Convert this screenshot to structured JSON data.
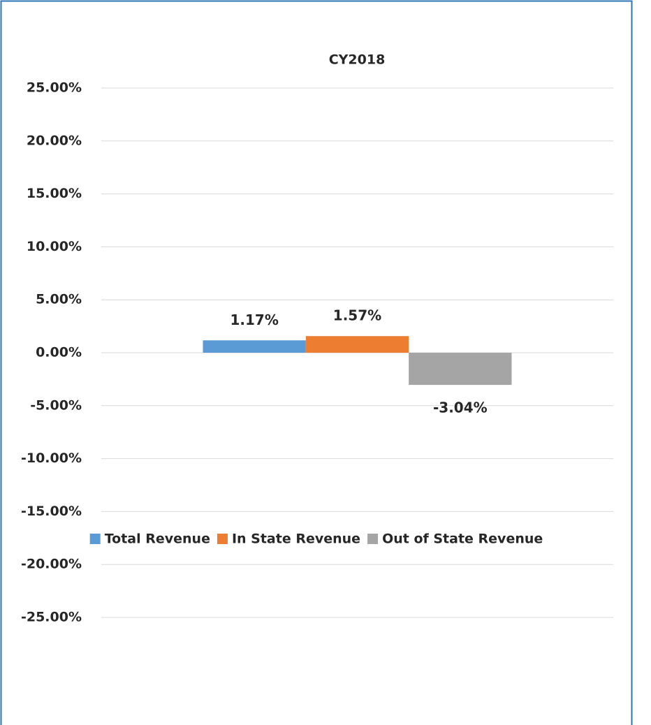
{
  "chart_data": {
    "type": "bar",
    "title": "CY2018",
    "series": [
      {
        "name": "Total Revenue",
        "color": "#5b9bd5",
        "values": [
          1.17
        ],
        "value_labels": [
          "1.17%"
        ]
      },
      {
        "name": "In State Revenue",
        "color": "#ed7d31",
        "values": [
          1.57
        ],
        "value_labels": [
          "1.57%"
        ]
      },
      {
        "name": "Out of State Revenue",
        "color": "#a5a5a5",
        "values": [
          -3.04
        ],
        "value_labels": [
          "-3.04%"
        ]
      }
    ],
    "ylim": [
      -25,
      25
    ],
    "yticks": [
      {
        "value": -25,
        "label": "-25.00%"
      },
      {
        "value": -20,
        "label": "-20.00%"
      },
      {
        "value": -15,
        "label": "-15.00%"
      },
      {
        "value": -10,
        "label": "-10.00%"
      },
      {
        "value": -5,
        "label": "-5.00%"
      },
      {
        "value": 0,
        "label": "0.00%"
      },
      {
        "value": 5,
        "label": "5.00%"
      },
      {
        "value": 10,
        "label": "10.00%"
      },
      {
        "value": 15,
        "label": "15.00%"
      },
      {
        "value": 20,
        "label": "20.00%"
      },
      {
        "value": 25,
        "label": "25.00%"
      }
    ],
    "grid": true,
    "legend": "bottom"
  }
}
